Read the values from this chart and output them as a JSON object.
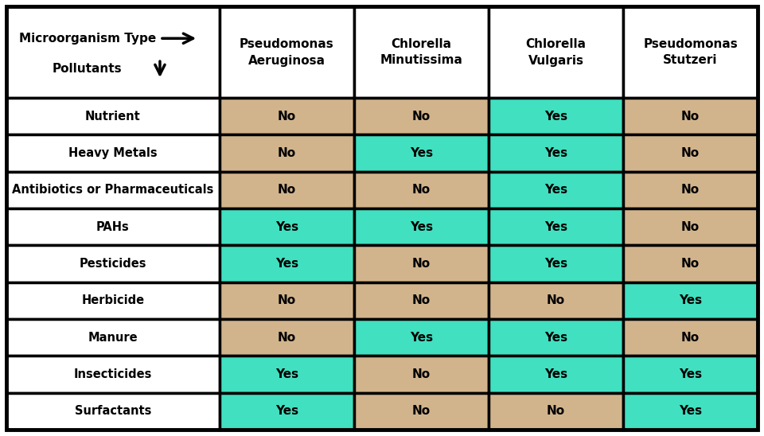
{
  "columns": [
    "Pseudomonas\nAeruginosa",
    "Chlorella\nMinutissima",
    "Chlorella\nVulgaris",
    "Pseudomonas\nStutzeri"
  ],
  "rows": [
    "Nutrient",
    "Heavy Metals",
    "Antibiotics or Pharmaceuticals",
    "PAHs",
    "Pesticides",
    "Herbicide",
    "Manure",
    "Insecticides",
    "Surfactants"
  ],
  "values": [
    [
      "No",
      "No",
      "Yes",
      "No"
    ],
    [
      "No",
      "Yes",
      "Yes",
      "No"
    ],
    [
      "No",
      "No",
      "Yes",
      "No"
    ],
    [
      "Yes",
      "Yes",
      "Yes",
      "No"
    ],
    [
      "Yes",
      "No",
      "Yes",
      "No"
    ],
    [
      "No",
      "No",
      "No",
      "Yes"
    ],
    [
      "No",
      "Yes",
      "Yes",
      "No"
    ],
    [
      "Yes",
      "No",
      "Yes",
      "Yes"
    ],
    [
      "Yes",
      "No",
      "No",
      "Yes"
    ]
  ],
  "yes_color": "#40E0C0",
  "no_color": "#D2B48C",
  "header_bg": "#FFFFFF",
  "border_color": "#000000",
  "text_color": "#000000",
  "header_label1": "Microorganism Type",
  "header_label2": "Pollutants",
  "fig_width": 9.6,
  "fig_height": 5.48,
  "font_size_col_header": 11,
  "font_size_cell": 11,
  "font_size_row": 10.5,
  "font_size_top_header": 11
}
